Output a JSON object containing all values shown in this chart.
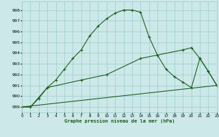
{
  "title": "Graphe pression niveau de la mer (hPa)",
  "bg_color": "#cce8e8",
  "grid_color": "#99cccc",
  "line_color": "#1a5c1a",
  "x_min": 0,
  "x_max": 23,
  "y_min": 988.5,
  "y_max": 998.8,
  "series1_x": [
    0,
    1,
    2,
    3,
    4,
    5,
    6,
    7,
    8,
    9,
    10,
    11,
    12,
    13,
    14,
    15,
    16,
    17,
    18,
    19,
    20,
    21,
    22,
    23
  ],
  "series1_y": [
    989.0,
    989.0,
    989.8,
    990.8,
    991.5,
    992.5,
    993.5,
    994.3,
    995.6,
    996.5,
    997.2,
    997.7,
    998.0,
    998.0,
    997.8,
    995.5,
    993.8,
    992.5,
    991.8,
    991.3,
    990.8,
    993.5,
    992.3,
    991.0
  ],
  "series2_x": [
    0,
    23
  ],
  "series2_y": [
    989.0,
    991.0
  ],
  "series3_x": [
    0,
    1,
    3,
    7,
    10,
    14,
    19,
    20,
    21,
    22,
    23
  ],
  "series3_y": [
    989.0,
    989.0,
    990.8,
    991.5,
    992.0,
    993.5,
    994.3,
    994.5,
    993.5,
    992.3,
    991.0
  ],
  "y_ticks": [
    989,
    990,
    991,
    992,
    993,
    994,
    995,
    996,
    997,
    998
  ],
  "x_ticks": [
    0,
    1,
    2,
    3,
    4,
    5,
    6,
    7,
    8,
    9,
    10,
    11,
    12,
    13,
    14,
    15,
    16,
    17,
    18,
    19,
    20,
    21,
    22,
    23
  ]
}
